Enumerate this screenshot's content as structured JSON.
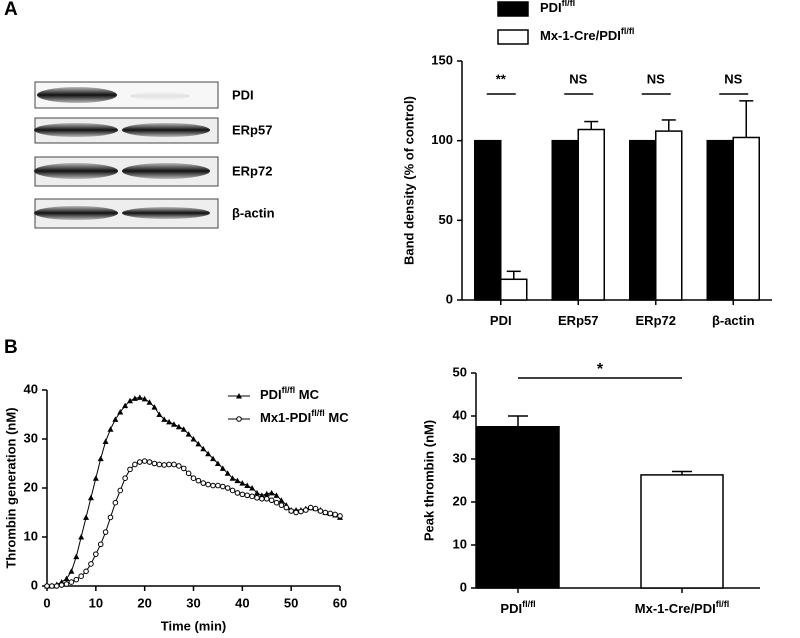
{
  "panels": [
    "A",
    "B"
  ],
  "blot": {
    "labels": [
      "PDI",
      "ERp57",
      "ERp72",
      "β-actin"
    ]
  },
  "chart_data": [
    {
      "type": "bar",
      "ylabel": "Band density  (% of control)",
      "categories": [
        "PDI",
        "ERp57",
        "ERp72",
        "β-actin"
      ],
      "series": [
        {
          "name": "PDI",
          "name_sup": "fl/fl",
          "color": "#000000",
          "values": [
            100,
            100,
            100,
            100
          ]
        },
        {
          "name": "Mx-1-Cre/PDI",
          "name_sup": "fl/fl",
          "color": "#ffffff",
          "values": [
            13,
            107,
            106,
            102
          ],
          "errors": [
            5,
            5,
            7,
            23
          ]
        }
      ],
      "significance": [
        "**",
        "NS",
        "NS",
        "NS"
      ],
      "ylim": [
        0,
        150
      ],
      "yticks": [
        0,
        50,
        100,
        150
      ]
    },
    {
      "type": "line",
      "xlabel": "Time (min)",
      "ylabel": "Thrombin generation (nM)",
      "x": [
        0,
        1,
        2,
        3,
        4,
        5,
        6,
        7,
        8,
        9,
        10,
        11,
        12,
        13,
        14,
        15,
        16,
        17,
        18,
        19,
        20,
        21,
        22,
        23,
        24,
        25,
        26,
        27,
        28,
        29,
        30,
        31,
        32,
        33,
        34,
        35,
        36,
        37,
        38,
        39,
        40,
        41,
        42,
        43,
        44,
        45,
        46,
        47,
        48,
        49,
        50,
        51,
        52,
        53,
        54,
        55,
        56,
        57,
        58,
        59,
        60
      ],
      "series": [
        {
          "name": "PDI",
          "name_sup": "fl/fl",
          "name_tail": " MC",
          "color": "#000000",
          "marker": "triangle",
          "values": [
            0,
            0,
            0.3,
            0.8,
            1.5,
            3,
            6,
            10,
            14,
            18,
            22,
            26,
            29.5,
            32,
            34,
            35.5,
            36.8,
            37.8,
            38.3,
            38.5,
            38.2,
            37.5,
            36.5,
            35,
            34,
            33.5,
            33,
            32.5,
            32,
            31,
            30,
            29,
            28,
            27,
            26,
            25,
            24,
            23,
            22,
            21.5,
            21,
            20.5,
            20,
            19,
            18.5,
            18.8,
            19,
            18.5,
            17.5,
            16.5,
            15.5,
            15.5,
            15.5,
            15.8,
            16,
            15.8,
            15.5,
            15,
            14.8,
            14.5,
            14
          ]
        },
        {
          "name": "Mx1-PDI",
          "name_sup": "fl/fl",
          "name_tail": " MC",
          "color": "#000000",
          "marker": "circle",
          "values": [
            0,
            0,
            0,
            0.2,
            0.4,
            0.8,
            1.3,
            2,
            3,
            4.5,
            6.5,
            8.5,
            11,
            14,
            17,
            19.5,
            22,
            23.8,
            24.8,
            25.3,
            25.5,
            25.3,
            25,
            24.8,
            24.7,
            24.8,
            24.8,
            24.5,
            24,
            23,
            22,
            21.5,
            21,
            20.7,
            20.5,
            20.5,
            20.3,
            20,
            19.5,
            19,
            18.7,
            18.5,
            18.3,
            18,
            17.8,
            17.8,
            17.5,
            17,
            16.5,
            16,
            15.3,
            15,
            15.2,
            15.5,
            16,
            15.8,
            15.3,
            15,
            14.8,
            14.6,
            14.3
          ]
        }
      ],
      "xlim": [
        0,
        60
      ],
      "xticks": [
        0,
        10,
        20,
        30,
        40,
        50,
        60
      ],
      "ylim": [
        0,
        40
      ],
      "yticks": [
        0,
        10,
        20,
        30,
        40
      ]
    },
    {
      "type": "bar",
      "ylabel": "Peak thrombin (nM)",
      "categories": [
        "PDI",
        "Mx-1-Cre/PDI"
      ],
      "category_sups": [
        "fl/fl",
        "fl/fl"
      ],
      "values": [
        37.5,
        26.3
      ],
      "errors": [
        2.5,
        0.8
      ],
      "colors": [
        "#000000",
        "#ffffff"
      ],
      "significance": "*",
      "ylim": [
        0,
        50
      ],
      "yticks": [
        0,
        10,
        20,
        30,
        40,
        50
      ]
    }
  ]
}
